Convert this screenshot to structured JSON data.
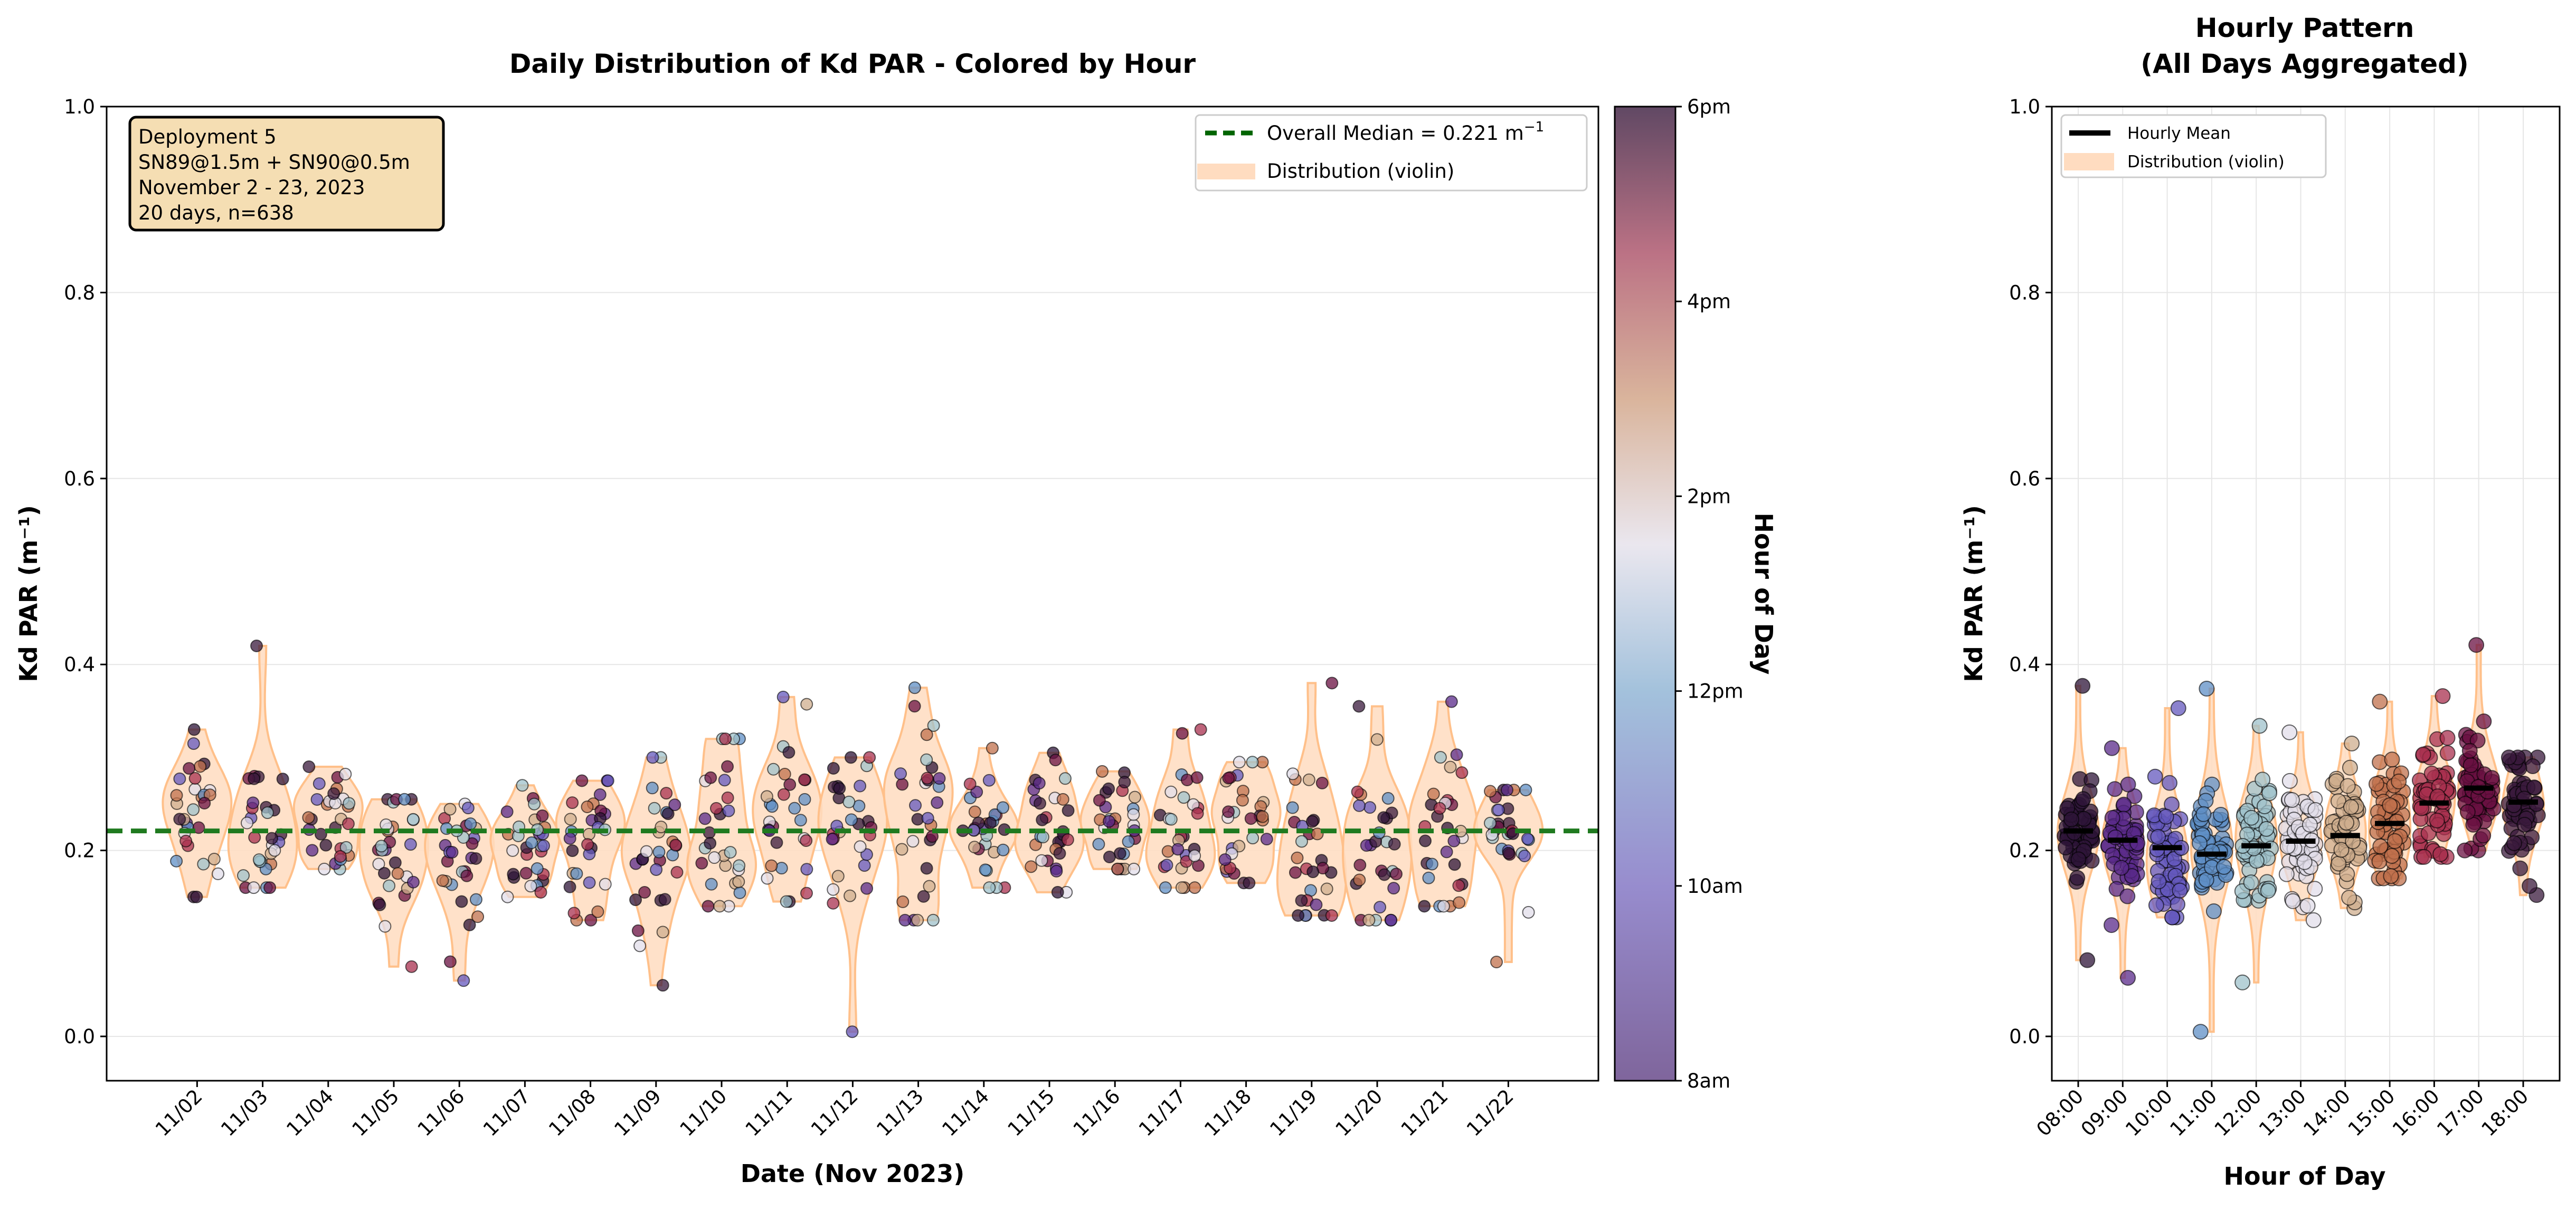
{
  "chart_data": [
    {
      "type": "violin+scatter",
      "title": "Daily Distribution of Kd PAR - Colored by Hour",
      "xlabel": "Date (Nov 2023)",
      "ylabel": "Kd PAR (m⁻¹)",
      "ylim": [
        -0.05,
        1.0
      ],
      "yticks": [
        "0.0",
        "0.2",
        "0.4",
        "0.6",
        "0.8",
        "1.0"
      ],
      "ytick_values": [
        0.0,
        0.2,
        0.4,
        0.6,
        0.8,
        1.0
      ],
      "grid": true,
      "categories": [
        "11/02",
        "11/03",
        "11/04",
        "11/05",
        "11/06",
        "11/07",
        "11/08",
        "11/09",
        "11/10",
        "11/11",
        "11/12",
        "11/13",
        "11/14",
        "11/15",
        "11/16",
        "11/17",
        "11/18",
        "11/19",
        "11/20",
        "11/21",
        "11/22"
      ],
      "daily_center": [
        0.245,
        0.22,
        0.225,
        0.19,
        0.18,
        0.21,
        0.215,
        0.2,
        0.23,
        0.235,
        0.225,
        0.235,
        0.225,
        0.215,
        0.22,
        0.225,
        0.235,
        0.21,
        0.205,
        0.22,
        0.21
      ],
      "daily_min": [
        0.15,
        0.16,
        0.18,
        0.075,
        0.06,
        0.15,
        0.125,
        0.055,
        0.14,
        0.145,
        0.005,
        0.125,
        0.16,
        0.155,
        0.18,
        0.16,
        0.165,
        0.13,
        0.125,
        0.14,
        0.08
      ],
      "daily_max": [
        0.33,
        0.42,
        0.29,
        0.255,
        0.25,
        0.27,
        0.275,
        0.3,
        0.32,
        0.365,
        0.3,
        0.375,
        0.31,
        0.305,
        0.285,
        0.33,
        0.295,
        0.38,
        0.355,
        0.36,
        0.265
      ],
      "median_line": 0.221,
      "legend": {
        "position": "top-right",
        "median_label": "Overall Median = 0.221 m",
        "median_sup": "−1",
        "violin_label": "Distribution (violin)"
      },
      "annotation": [
        "Deployment 5",
        "SN89@1.5m + SN90@0.5m",
        "November 2 - 23, 2023",
        "20 days, n=638"
      ],
      "colorbar": {
        "label": "Hour of Day",
        "ticks": [
          "6pm",
          "4pm",
          "2pm",
          "12pm",
          "10am",
          "8am"
        ],
        "range_hours": [
          8,
          18
        ]
      }
    },
    {
      "type": "violin+scatter",
      "title_line1": "Hourly Pattern",
      "title_line2": "(All Days Aggregated)",
      "xlabel": "Hour of Day",
      "ylabel": "Kd PAR (m⁻¹)",
      "ylim": [
        -0.05,
        1.0
      ],
      "yticks": [
        "0.0",
        "0.2",
        "0.4",
        "0.6",
        "0.8",
        "1.0"
      ],
      "categories": [
        "08:00",
        "09:00",
        "10:00",
        "11:00",
        "12:00",
        "13:00",
        "14:00",
        "15:00",
        "16:00",
        "17:00",
        "18:00"
      ],
      "hourly_mean": [
        0.221,
        0.211,
        0.203,
        0.196,
        0.205,
        0.21,
        0.216,
        0.229,
        0.251,
        0.267,
        0.252
      ],
      "hourly_min": [
        0.082,
        0.063,
        0.128,
        0.005,
        0.058,
        0.125,
        0.138,
        0.17,
        0.193,
        0.2,
        0.152
      ],
      "hourly_max": [
        0.377,
        0.31,
        0.353,
        0.374,
        0.334,
        0.327,
        0.315,
        0.36,
        0.366,
        0.421,
        0.3
      ],
      "hourly_color": [
        "#2e1438",
        "#5a2a8a",
        "#6458bd",
        "#5f8fc6",
        "#9fc2cb",
        "#e2deea",
        "#cfae8e",
        "#c0704c",
        "#a8304f",
        "#6a1042",
        "#3a1a3c"
      ],
      "legend": {
        "position": "top-left",
        "mean_label": "Hourly Mean",
        "violin_label": "Distribution (violin)"
      }
    }
  ],
  "colors": {
    "violin": "#ffdcc0",
    "violin_edge": "#ffc08a",
    "median": "#1f7a1f",
    "median_legend": "#006400",
    "annotation_bg": "#f5deb3"
  }
}
